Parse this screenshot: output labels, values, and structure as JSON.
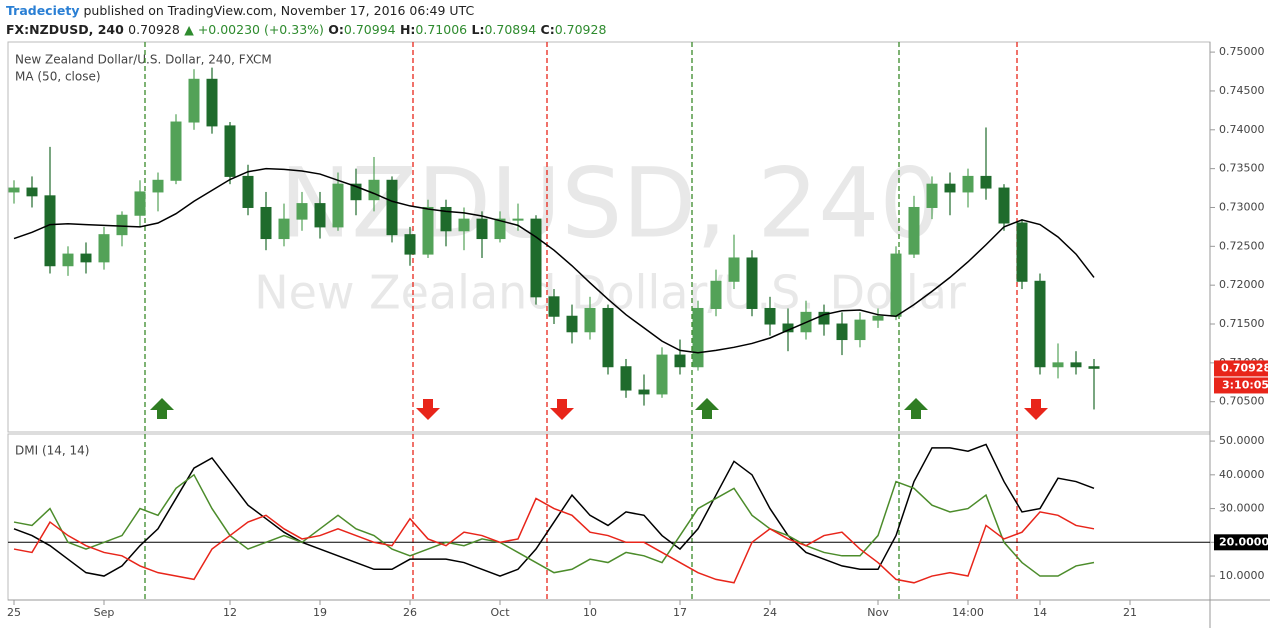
{
  "header": {
    "author": "Tradeciety",
    "published": "published on TradingView.com, November 17, 2016 06:49 UTC",
    "symbol": "FX:NZDUSD, 240",
    "last": "0.70928",
    "change": "▲ +0.00230 (+0.33%)",
    "o_label": "O:",
    "o": "0.70994",
    "h_label": "H:",
    "h": "0.71006",
    "l_label": "L:",
    "l": "0.70894",
    "c_label": "C:",
    "c": "0.70928"
  },
  "chart_data": [
    {
      "type": "candlestick",
      "title": "New Zealand Dollar/U.S. Dollar, 240, FXCM",
      "watermark": [
        "NZDUSD, 240",
        "New Zealand Dollar/U.S. Dollar"
      ],
      "categories": [
        "25",
        null,
        null,
        null,
        null,
        "Sep",
        null,
        null,
        null,
        null,
        null,
        null,
        "12",
        null,
        null,
        null,
        null,
        "19",
        null,
        null,
        null,
        null,
        "26",
        null,
        null,
        null,
        null,
        "Oct",
        null,
        null,
        null,
        null,
        "10",
        null,
        null,
        null,
        null,
        "17",
        null,
        null,
        null,
        null,
        "24",
        null,
        null,
        null,
        null,
        null,
        "Nov",
        null,
        null,
        null,
        null,
        "14:00",
        null,
        null,
        null,
        "14",
        null,
        null,
        null,
        null,
        "21"
      ],
      "open": [
        0.732,
        0.7325,
        0.7315,
        0.7225,
        0.724,
        0.723,
        0.7265,
        0.729,
        0.732,
        0.7335,
        0.741,
        0.7465,
        0.7405,
        0.734,
        0.73,
        0.726,
        0.7285,
        0.7305,
        0.7275,
        0.733,
        0.731,
        0.7335,
        0.7265,
        0.724,
        0.73,
        0.727,
        0.7285,
        0.726,
        0.7285,
        0.7285,
        0.7185,
        0.716,
        0.714,
        0.717,
        0.7095,
        0.7065,
        0.706,
        0.711,
        0.7095,
        0.717,
        0.7205,
        0.7235,
        0.717,
        0.715,
        0.714,
        0.7165,
        0.715,
        0.713,
        0.7155,
        0.716,
        0.724,
        0.73,
        0.733,
        0.732,
        0.734,
        0.7325,
        0.728,
        0.7205,
        0.7095,
        0.71,
        0.7095,
        null,
        null
      ],
      "high": [
        0.7335,
        0.734,
        0.7378,
        0.725,
        0.7255,
        0.7275,
        0.7295,
        0.7335,
        0.7345,
        0.742,
        0.7478,
        0.748,
        0.741,
        0.7355,
        0.732,
        0.7305,
        0.732,
        0.732,
        0.7345,
        0.735,
        0.7365,
        0.734,
        0.7275,
        0.731,
        0.731,
        0.73,
        0.7295,
        0.7295,
        0.7305,
        0.729,
        0.7195,
        0.7175,
        0.7185,
        0.7175,
        0.7105,
        0.7085,
        0.712,
        0.713,
        0.718,
        0.722,
        0.7265,
        0.7245,
        0.7185,
        0.717,
        0.718,
        0.7175,
        0.7165,
        0.7165,
        0.717,
        0.725,
        0.7315,
        0.734,
        0.7345,
        0.735,
        0.7403,
        0.733,
        0.7285,
        0.7215,
        0.7125,
        0.7115,
        0.7105,
        null,
        null
      ],
      "low": [
        0.7305,
        0.73,
        0.7215,
        0.7212,
        0.7215,
        0.722,
        0.725,
        0.7275,
        0.7295,
        0.733,
        0.74,
        0.7395,
        0.733,
        0.729,
        0.7245,
        0.725,
        0.727,
        0.726,
        0.727,
        0.729,
        0.7295,
        0.7255,
        0.7225,
        0.7235,
        0.725,
        0.7245,
        0.7235,
        0.7255,
        0.727,
        0.7175,
        0.715,
        0.7125,
        0.713,
        0.7085,
        0.7055,
        0.7045,
        0.7055,
        0.7085,
        0.709,
        0.716,
        0.7195,
        0.716,
        0.7135,
        0.7115,
        0.713,
        0.7135,
        0.711,
        0.712,
        0.7145,
        0.7155,
        0.7235,
        0.7285,
        0.729,
        0.73,
        0.731,
        0.727,
        0.7195,
        0.7085,
        0.708,
        0.7085,
        0.704,
        null,
        null
      ],
      "close": [
        0.7325,
        0.7315,
        0.7225,
        0.724,
        0.723,
        0.7265,
        0.729,
        0.732,
        0.7335,
        0.741,
        0.7465,
        0.7405,
        0.734,
        0.73,
        0.726,
        0.7285,
        0.7305,
        0.7275,
        0.733,
        0.731,
        0.7335,
        0.7265,
        0.724,
        0.73,
        0.727,
        0.7285,
        0.726,
        0.7285,
        0.7285,
        0.7185,
        0.716,
        0.714,
        0.717,
        0.7095,
        0.7065,
        0.706,
        0.711,
        0.7095,
        0.717,
        0.7205,
        0.7235,
        0.717,
        0.715,
        0.714,
        0.7165,
        0.715,
        0.713,
        0.7155,
        0.716,
        0.724,
        0.73,
        0.733,
        0.732,
        0.734,
        0.7325,
        0.728,
        0.7205,
        0.7095,
        0.71,
        0.7095,
        0.7093,
        null,
        null
      ],
      "up_color": "#53a258",
      "down_color": "#1f6b2c",
      "series": [
        {
          "name": "MA (50, close)",
          "color": "#000000",
          "values": [
            0.726,
            0.7268,
            0.7278,
            0.7279,
            0.7278,
            0.7277,
            0.7276,
            0.7275,
            0.728,
            0.7292,
            0.7308,
            0.7322,
            0.7336,
            0.7346,
            0.735,
            0.7349,
            0.7347,
            0.7343,
            0.7335,
            0.7327,
            0.7318,
            0.7308,
            0.7302,
            0.7298,
            0.7295,
            0.7293,
            0.7289,
            0.7283,
            0.7277,
            0.7262,
            0.7245,
            0.7225,
            0.7203,
            0.7182,
            0.7162,
            0.7145,
            0.7128,
            0.7116,
            0.7113,
            0.7116,
            0.712,
            0.7125,
            0.7132,
            0.7142,
            0.7152,
            0.7162,
            0.7167,
            0.7168,
            0.7162,
            0.716,
            0.7175,
            0.7192,
            0.721,
            0.723,
            0.7252,
            0.7275,
            0.7284,
            0.7278,
            0.7262,
            0.724,
            0.721,
            null,
            null
          ]
        }
      ],
      "ylim": [
        0.7011,
        0.7513
      ],
      "yticks": [
        {
          "value": 0.75,
          "label": "0.75000"
        },
        {
          "value": 0.745,
          "label": "0.74500"
        },
        {
          "value": 0.74,
          "label": "0.74000"
        },
        {
          "value": 0.735,
          "label": "0.73500"
        },
        {
          "value": 0.73,
          "label": "0.73000"
        },
        {
          "value": 0.725,
          "label": "0.72500"
        },
        {
          "value": 0.72,
          "label": "0.72000"
        },
        {
          "value": 0.715,
          "label": "0.71500"
        },
        {
          "value": 0.71,
          "label": "0.71000"
        },
        {
          "value": 0.705,
          "label": "0.70500"
        }
      ],
      "last_price": {
        "value": 0.70928,
        "label": "0.70928"
      },
      "last_color": "#e8251a",
      "countdown": "3:10:05"
    },
    {
      "type": "line",
      "title": "DMI (14, 14)",
      "series": [
        {
          "color": "#000000",
          "values": [
            24,
            22,
            19,
            15,
            11,
            10,
            13,
            19,
            24,
            33,
            42,
            45,
            38,
            31,
            27,
            23,
            20,
            18,
            16,
            14,
            12,
            12,
            15,
            15,
            15,
            14,
            12,
            10,
            12,
            18,
            26,
            34,
            28,
            25,
            29,
            28,
            22,
            18,
            24,
            34,
            44,
            40,
            30,
            22,
            17,
            15,
            13,
            12,
            12,
            22,
            38,
            48,
            48,
            47,
            49,
            38,
            29,
            30,
            39,
            38,
            36,
            null,
            null
          ]
        },
        {
          "color": "#4c8c2b",
          "values": [
            26,
            25,
            30,
            20,
            18,
            20,
            22,
            30,
            28,
            36,
            40,
            30,
            22,
            18,
            20,
            22,
            20,
            24,
            28,
            24,
            22,
            18,
            16,
            18,
            20,
            19,
            21,
            20,
            17,
            14,
            11,
            12,
            15,
            14,
            17,
            16,
            14,
            22,
            30,
            33,
            36,
            28,
            24,
            22,
            19,
            17,
            16,
            16,
            22,
            38,
            36,
            31,
            29,
            30,
            34,
            20,
            14,
            10,
            10,
            13,
            14,
            null,
            null
          ]
        },
        {
          "color": "#e8251a",
          "values": [
            18,
            17,
            26,
            22,
            19,
            17,
            16,
            13,
            11,
            10,
            9,
            18,
            22,
            26,
            28,
            24,
            21,
            22,
            24,
            22,
            20,
            19,
            27,
            21,
            19,
            23,
            22,
            20,
            21,
            33,
            30,
            28,
            23,
            22,
            20,
            20,
            17,
            14,
            11,
            9,
            8,
            20,
            24,
            21,
            19,
            22,
            23,
            18,
            14,
            9,
            8,
            10,
            11,
            10,
            25,
            21,
            23,
            29,
            28,
            25,
            24,
            null,
            null
          ]
        }
      ],
      "ylim": [
        2.9,
        52.1
      ],
      "yticks": [
        {
          "value": 50,
          "label": "50.0000"
        },
        {
          "value": 40,
          "label": "40.0000"
        },
        {
          "value": 30,
          "label": "30.0000"
        },
        {
          "value": 20,
          "label": "20.0000"
        },
        {
          "value": 10,
          "label": "10.0000"
        }
      ],
      "level": {
        "value": 20,
        "label": "20.0000"
      }
    }
  ]
}
